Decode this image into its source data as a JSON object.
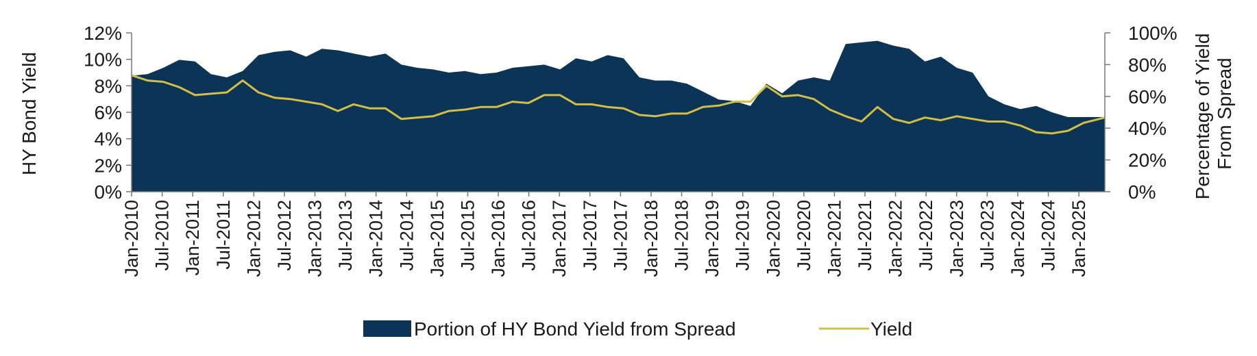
{
  "chart_data": {
    "type": "area",
    "x_tick_labels": [
      "Jan-2010",
      "Jul-2010",
      "Jan-2011",
      "Jul-2011",
      "Jan-2012",
      "Jul-2012",
      "Jan-2013",
      "Jul-2013",
      "Jan-2014",
      "Jul-2014",
      "Jan-2015",
      "Jul-2015",
      "Jan-2016",
      "Jul-2016",
      "Jan-2017",
      "Jul-2017",
      "Jul-2017",
      "Jan-2018",
      "Jul-2018",
      "Jan-2019",
      "Jul-2019",
      "Jan-2020",
      "Jul-2020",
      "Jan-2021",
      "Jul-2021",
      "Jan-2022",
      "Jul-2022",
      "Jan-2023",
      "Jul-2023",
      "Jan-2024",
      "Jul-2024",
      "Jan-2025"
    ],
    "x_range": [
      "2010-01",
      "2025-05"
    ],
    "y_left": {
      "label": "HY Bond Yield",
      "min": 0,
      "max": 12,
      "ticks": [
        "0%",
        "2%",
        "4%",
        "6%",
        "8%",
        "10%",
        "12%"
      ]
    },
    "y_right": {
      "label_lines": [
        "Percentage of Yield",
        "From Spread"
      ],
      "min": 0,
      "max": 100,
      "ticks": [
        "0%",
        "20%",
        "40%",
        "60%",
        "80%",
        "100%"
      ]
    },
    "series": [
      {
        "name": "Portion of HY Bond Yield from Spread",
        "type": "area",
        "axis": "right",
        "color": "#0c3456",
        "points": [
          [
            "2010-01",
            73
          ],
          [
            "2010-04",
            74
          ],
          [
            "2010-07",
            78
          ],
          [
            "2010-10",
            83
          ],
          [
            "2011-01",
            82
          ],
          [
            "2011-04",
            74
          ],
          [
            "2011-07",
            72
          ],
          [
            "2011-10",
            76
          ],
          [
            "2012-01",
            86
          ],
          [
            "2012-04",
            88
          ],
          [
            "2012-07",
            89
          ],
          [
            "2012-10",
            85
          ],
          [
            "2013-01",
            90
          ],
          [
            "2013-04",
            89
          ],
          [
            "2013-07",
            87
          ],
          [
            "2013-10",
            85
          ],
          [
            "2014-01",
            87
          ],
          [
            "2014-04",
            80
          ],
          [
            "2014-07",
            78
          ],
          [
            "2014-10",
            77
          ],
          [
            "2015-01",
            75
          ],
          [
            "2015-04",
            76
          ],
          [
            "2015-07",
            74
          ],
          [
            "2015-10",
            75
          ],
          [
            "2016-01",
            78
          ],
          [
            "2016-04",
            79
          ],
          [
            "2016-07",
            80
          ],
          [
            "2016-10",
            77
          ],
          [
            "2017-01",
            84
          ],
          [
            "2017-04",
            82
          ],
          [
            "2017-07",
            86
          ],
          [
            "2017-10",
            84
          ],
          [
            "2018-01",
            72
          ],
          [
            "2018-04",
            70
          ],
          [
            "2018-07",
            70
          ],
          [
            "2018-10",
            68
          ],
          [
            "2019-01",
            63
          ],
          [
            "2019-04",
            58
          ],
          [
            "2019-07",
            57
          ],
          [
            "2019-10",
            54
          ],
          [
            "2020-01",
            68
          ],
          [
            "2020-04",
            62
          ],
          [
            "2020-07",
            70
          ],
          [
            "2020-10",
            72
          ],
          [
            "2021-01",
            70
          ],
          [
            "2021-04",
            93
          ],
          [
            "2021-07",
            94
          ],
          [
            "2021-10",
            95
          ],
          [
            "2022-01",
            92
          ],
          [
            "2022-04",
            90
          ],
          [
            "2022-07",
            82
          ],
          [
            "2022-10",
            85
          ],
          [
            "2023-01",
            78
          ],
          [
            "2023-04",
            75
          ],
          [
            "2023-07",
            60
          ],
          [
            "2023-10",
            55
          ],
          [
            "2024-01",
            52
          ],
          [
            "2024-04",
            54
          ],
          [
            "2024-07",
            50
          ],
          [
            "2024-10",
            47
          ],
          [
            "2025-01",
            47
          ],
          [
            "2025-05",
            47
          ]
        ]
      },
      {
        "name": "Yield",
        "type": "line",
        "axis": "left",
        "color": "#d4bf45",
        "points": [
          [
            "2010-01",
            8.8
          ],
          [
            "2010-04",
            8.4
          ],
          [
            "2010-07",
            8.3
          ],
          [
            "2010-10",
            7.9
          ],
          [
            "2011-01",
            7.3
          ],
          [
            "2011-04",
            7.4
          ],
          [
            "2011-07",
            7.5
          ],
          [
            "2011-10",
            8.4
          ],
          [
            "2012-01",
            7.5
          ],
          [
            "2012-04",
            7.1
          ],
          [
            "2012-07",
            7.0
          ],
          [
            "2012-10",
            6.8
          ],
          [
            "2013-01",
            6.6
          ],
          [
            "2013-04",
            6.1
          ],
          [
            "2013-07",
            6.6
          ],
          [
            "2013-10",
            6.3
          ],
          [
            "2014-01",
            6.3
          ],
          [
            "2014-04",
            5.5
          ],
          [
            "2014-07",
            5.6
          ],
          [
            "2014-10",
            5.7
          ],
          [
            "2015-01",
            6.1
          ],
          [
            "2015-04",
            6.2
          ],
          [
            "2015-07",
            6.4
          ],
          [
            "2015-10",
            6.4
          ],
          [
            "2016-01",
            6.8
          ],
          [
            "2016-04",
            6.7
          ],
          [
            "2016-07",
            7.3
          ],
          [
            "2016-10",
            7.3
          ],
          [
            "2017-01",
            6.6
          ],
          [
            "2017-04",
            6.6
          ],
          [
            "2017-07",
            6.4
          ],
          [
            "2017-10",
            6.3
          ],
          [
            "2018-01",
            5.8
          ],
          [
            "2018-04",
            5.7
          ],
          [
            "2018-07",
            5.9
          ],
          [
            "2018-10",
            5.9
          ],
          [
            "2019-01",
            6.4
          ],
          [
            "2019-04",
            6.5
          ],
          [
            "2019-07",
            6.8
          ],
          [
            "2019-10",
            6.8
          ],
          [
            "2020-01",
            8.0
          ],
          [
            "2020-04",
            7.2
          ],
          [
            "2020-07",
            7.3
          ],
          [
            "2020-10",
            7.0
          ],
          [
            "2021-01",
            6.2
          ],
          [
            "2021-04",
            5.7
          ],
          [
            "2021-07",
            5.3
          ],
          [
            "2021-10",
            6.4
          ],
          [
            "2022-01",
            5.5
          ],
          [
            "2022-04",
            5.2
          ],
          [
            "2022-07",
            5.6
          ],
          [
            "2022-10",
            5.4
          ],
          [
            "2023-01",
            5.7
          ],
          [
            "2023-04",
            5.5
          ],
          [
            "2023-07",
            5.3
          ],
          [
            "2023-10",
            5.3
          ],
          [
            "2024-01",
            5.0
          ],
          [
            "2024-04",
            4.5
          ],
          [
            "2024-07",
            4.4
          ],
          [
            "2024-10",
            4.6
          ],
          [
            "2025-01",
            5.2
          ],
          [
            "2025-05",
            5.6
          ]
        ]
      }
    ],
    "legend": {
      "position": "bottom"
    },
    "grid": false
  }
}
